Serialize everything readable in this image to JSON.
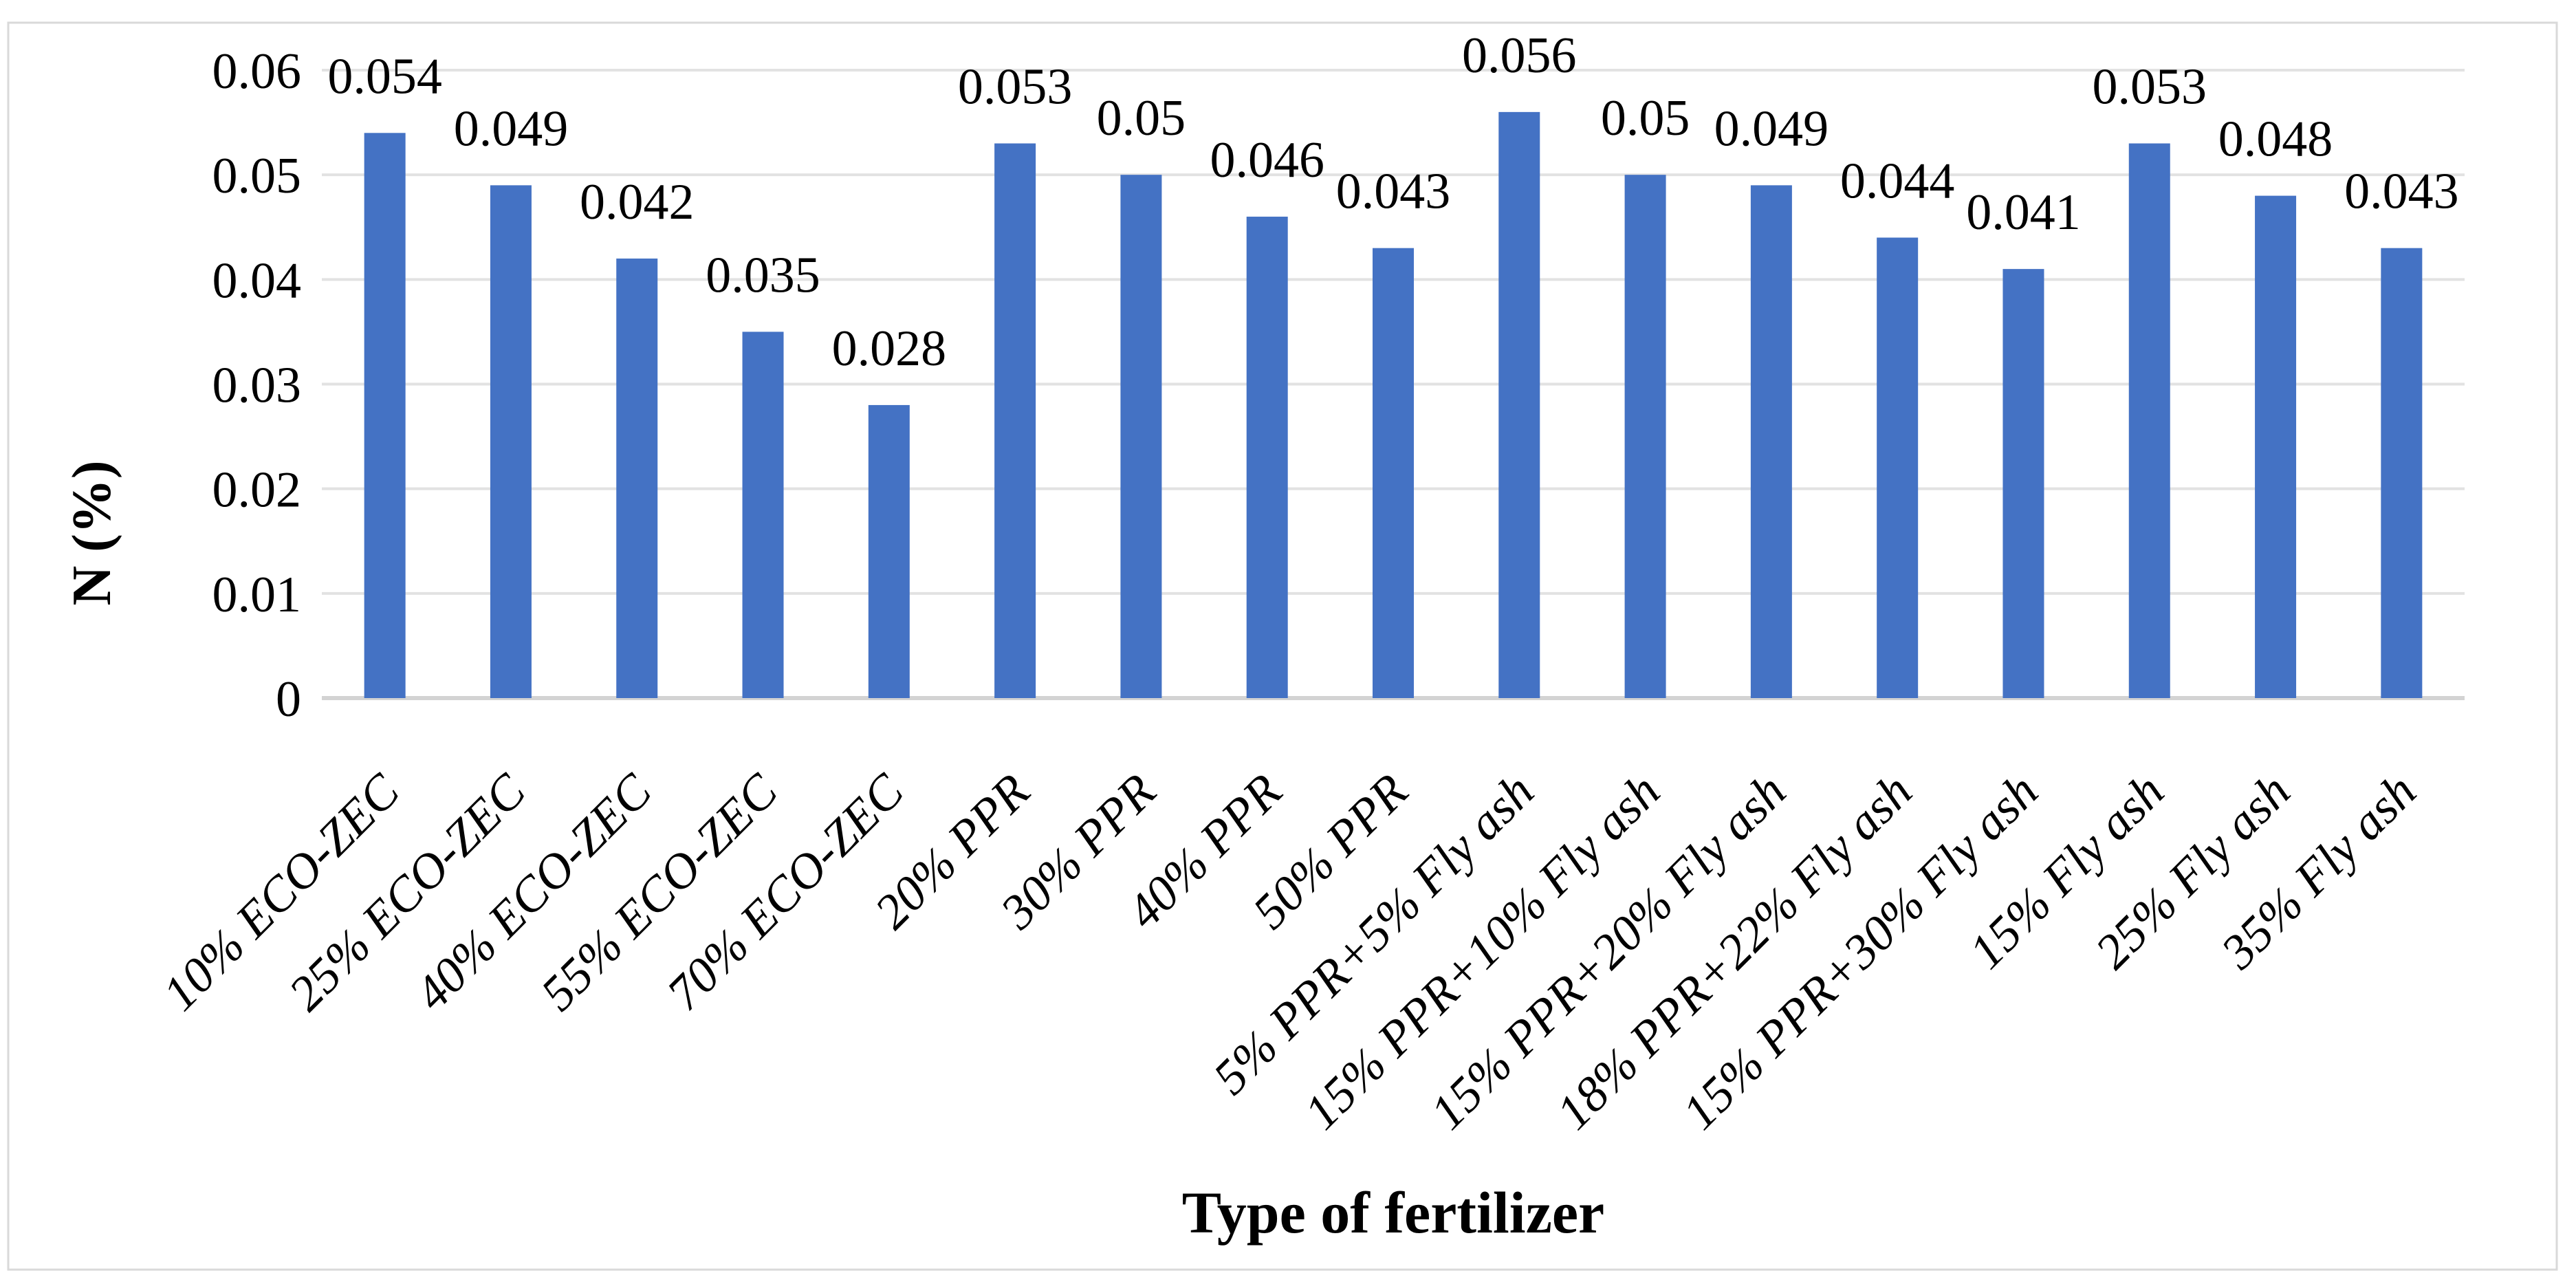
{
  "chart_data": {
    "type": "bar",
    "title": "",
    "xlabel": "Type of fertilizer",
    "ylabel": "N (%)",
    "categories": [
      "10% ECO-ZEC",
      "25% ECO-ZEC",
      "40% ECO-ZEC",
      "55% ECO-ZEC",
      "70% ECO-ZEC",
      "20% PPR",
      "30% PPR",
      "40% PPR",
      "50% PPR",
      "5% PPR+5% Fly ash",
      "15% PPR+10% Fly ash",
      "15% PPR+20% Fly ash",
      "18% PPR+22% Fly ash",
      "15% PPR+30% Fly ash",
      "15% Fly ash",
      "25% Fly ash",
      "35% Fly ash"
    ],
    "values": [
      0.054,
      0.049,
      0.042,
      0.035,
      0.028,
      0.053,
      0.05,
      0.046,
      0.043,
      0.056,
      0.05,
      0.049,
      0.044,
      0.041,
      0.053,
      0.048,
      0.043
    ],
    "value_labels": [
      "0.054",
      "0.049",
      "0.042",
      "0.035",
      "0.028",
      "0.053",
      "0.05",
      "0.046",
      "0.043",
      "0.056",
      "0.05",
      "0.049",
      "0.044",
      "0.041",
      "0.053",
      "0.048",
      "0.043"
    ],
    "ylim": [
      0,
      0.06
    ],
    "ytick_labels": [
      "0.06",
      "0.05",
      "0.04",
      "0.03",
      "0.02",
      "0.01",
      "0"
    ],
    "ytick_values": [
      0.06,
      0.05,
      0.04,
      0.03,
      0.02,
      0.01,
      0
    ],
    "grid": true,
    "legend": "none",
    "colors": {
      "bar": "#4472C4",
      "gridline": "#E2E2E2",
      "axis_line": "#D3D3D3",
      "frame_border": "#D9D9D9",
      "text": "#000000",
      "background": "#FFFFFF"
    }
  }
}
